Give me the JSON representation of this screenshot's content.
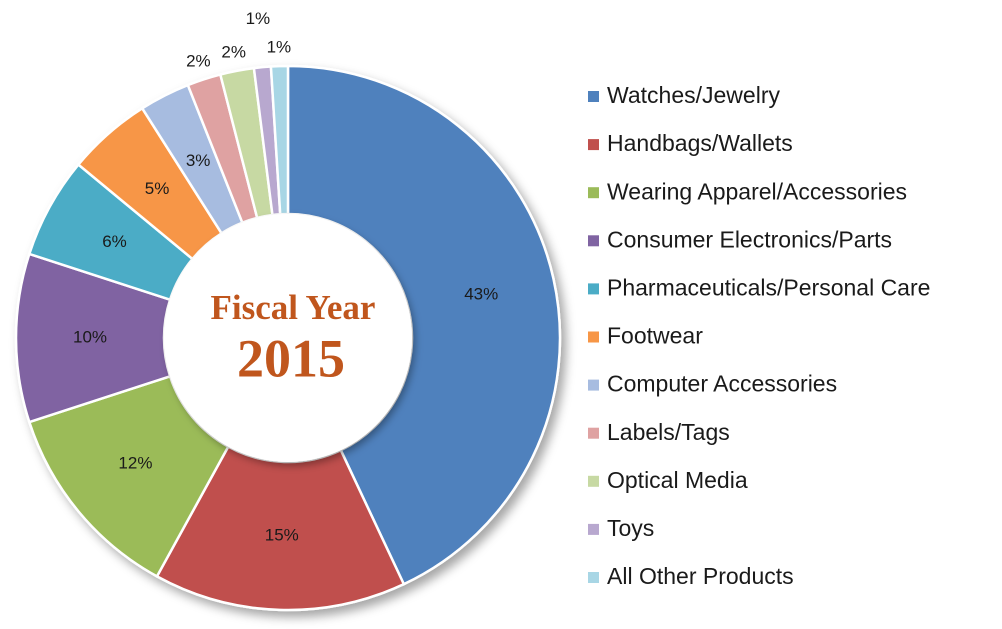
{
  "chart_data": {
    "type": "donut",
    "title": "Fiscal Year",
    "subtitle": "2015",
    "categories": [
      "Watches/Jewelry",
      "Handbags/Wallets",
      "Wearing Apparel/Accessories",
      "Consumer Electronics/Parts",
      "Pharmaceuticals/Personal Care",
      "Footwear",
      "Computer Accessories",
      "Labels/Tags",
      "Optical Media",
      "Toys",
      "All Other Products"
    ],
    "values": [
      43,
      15,
      12,
      10,
      6,
      5,
      3,
      2,
      2,
      1,
      1
    ],
    "value_labels": [
      "43%",
      "15%",
      "12%",
      "10%",
      "6%",
      "5%",
      "3%",
      "2%",
      "2%",
      "1%",
      "1%"
    ],
    "colors": [
      "#4f81bd",
      "#c0504d",
      "#9bbb59",
      "#8064a2",
      "#4bacc6",
      "#f79646",
      "#a7bce0",
      "#dfa2a2",
      "#c7d9a3",
      "#b8a8cf",
      "#a8d6e5"
    ],
    "legend": "right"
  }
}
